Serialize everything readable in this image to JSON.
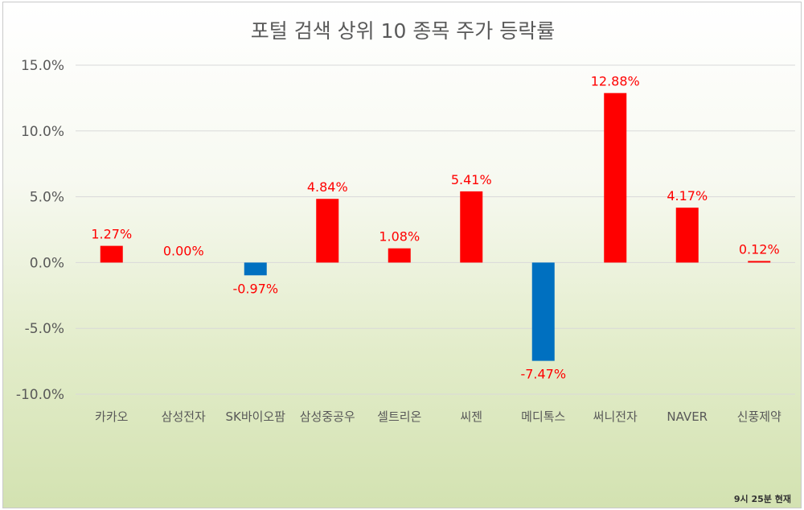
{
  "chart_data": {
    "type": "bar",
    "title": "포털 검색 상위 10 종목 주가 등락률",
    "categories": [
      "카카오",
      "삼성전자",
      "SK바이오팜",
      "삼성중공우",
      "셀트리온",
      "씨젠",
      "메디톡스",
      "써니전자",
      "NAVER",
      "신풍제약"
    ],
    "values": [
      1.27,
      0.0,
      -0.97,
      4.84,
      1.08,
      5.41,
      -7.47,
      12.88,
      4.17,
      0.12
    ],
    "data_labels": [
      "1.27%",
      "0.00%",
      "-0.97%",
      "4.84%",
      "1.08%",
      "5.41%",
      "-7.47%",
      "12.88%",
      "4.17%",
      "0.12%"
    ],
    "y_ticks": [
      15,
      10,
      5,
      0,
      -5,
      -10
    ],
    "y_tick_labels": [
      "15.0%",
      "10.0%",
      "5.0%",
      "0.0%",
      "-5.0%",
      "-10.0%"
    ],
    "ylim": [
      -10,
      15
    ],
    "grid": true,
    "xlabel": "",
    "ylabel": "",
    "colors": {
      "positive": "#ff0000",
      "negative": "#0070c0",
      "grid": "#d9d9d9",
      "text": "#595959"
    }
  },
  "footnote": "9시 25분 현재"
}
